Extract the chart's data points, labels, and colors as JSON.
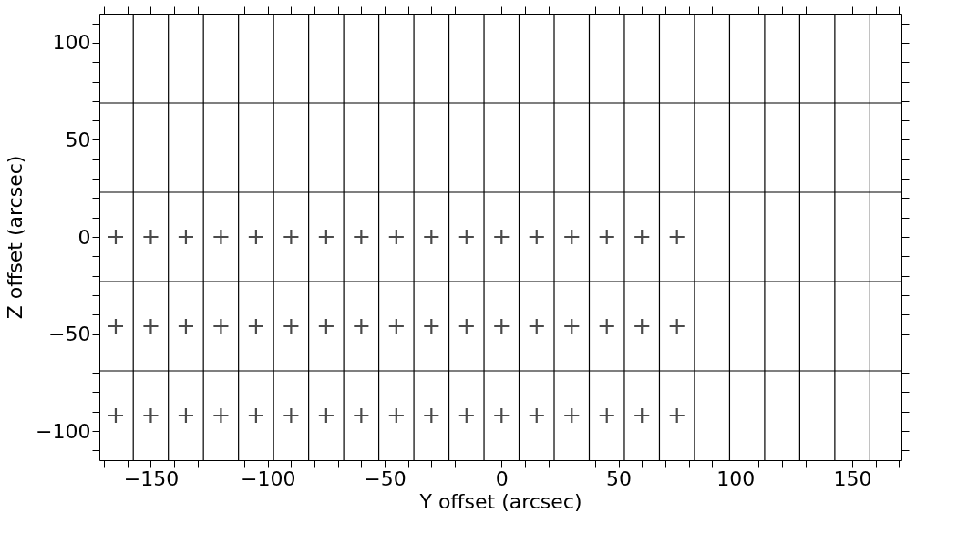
{
  "chart_data": {
    "type": "scatter",
    "xlabel": "Y offset (arcsec)",
    "ylabel": "Z offset (arcsec)",
    "xlim": [
      -172,
      171
    ],
    "ylim": [
      -115,
      115
    ],
    "xticks": [
      {
        "value": -170,
        "label": null
      },
      {
        "value": -160,
        "label": null
      },
      -150,
      {
        "value": -140,
        "label": null
      },
      {
        "value": -130,
        "label": null
      },
      {
        "value": -120,
        "label": null
      },
      {
        "value": -110,
        "label": null
      },
      -100,
      {
        "value": -90,
        "label": null
      },
      {
        "value": -80,
        "label": null
      },
      {
        "value": -70,
        "label": null
      },
      {
        "value": -60,
        "label": null
      },
      -50,
      {
        "value": -40,
        "label": null
      },
      {
        "value": -30,
        "label": null
      },
      {
        "value": -20,
        "label": null
      },
      {
        "value": -10,
        "label": null
      },
      0,
      {
        "value": 10,
        "label": null
      },
      {
        "value": 20,
        "label": null
      },
      {
        "value": 30,
        "label": null
      },
      {
        "value": 40,
        "label": null
      },
      50,
      {
        "value": 60,
        "label": null
      },
      {
        "value": 70,
        "label": null
      },
      {
        "value": 80,
        "label": null
      },
      {
        "value": 90,
        "label": null
      },
      100,
      {
        "value": 110,
        "label": null
      },
      {
        "value": 120,
        "label": null
      },
      {
        "value": 130,
        "label": null
      },
      {
        "value": 140,
        "label": null
      },
      150,
      {
        "value": 160,
        "label": null
      },
      {
        "value": 170,
        "label": null
      }
    ],
    "yticks": [
      {
        "value": -110,
        "label": null
      },
      -100,
      {
        "value": -90,
        "label": null
      },
      {
        "value": -80,
        "label": null
      },
      {
        "value": -70,
        "label": null
      },
      {
        "value": -60,
        "label": null
      },
      -50,
      {
        "value": -40,
        "label": null
      },
      {
        "value": -30,
        "label": null
      },
      {
        "value": -20,
        "label": null
      },
      {
        "value": -10,
        "label": null
      },
      0,
      {
        "value": 10,
        "label": null
      },
      {
        "value": 20,
        "label": null
      },
      {
        "value": 30,
        "label": null
      },
      {
        "value": 40,
        "label": null
      },
      50,
      {
        "value": 60,
        "label": null
      },
      {
        "value": 70,
        "label": null
      },
      {
        "value": 80,
        "label": null
      },
      {
        "value": 90,
        "label": null
      },
      100,
      {
        "value": 110,
        "label": null
      }
    ],
    "grid": false,
    "marker": "cross",
    "series": [
      {
        "color": "#000000",
        "x": [
          -165,
          -150,
          -135,
          -120,
          -105,
          -90,
          -75,
          -60,
          -45,
          -30,
          -15,
          0,
          15,
          30,
          45,
          60,
          75
        ],
        "values": [
          0,
          0,
          0,
          0,
          0,
          0,
          0,
          0,
          0,
          0,
          0,
          0,
          0,
          0,
          0,
          0,
          0
        ]
      },
      {
        "color": "#000000",
        "x": [
          -165,
          -150,
          -135,
          -120,
          -105,
          -90,
          -75,
          -60,
          -45,
          -30,
          -15,
          0,
          15,
          30,
          45,
          60,
          75
        ],
        "values": [
          -46,
          -46,
          -46,
          -46,
          -46,
          -46,
          -46,
          -46,
          -46,
          -46,
          -46,
          -46,
          -46,
          -46,
          -46,
          -46,
          -46
        ]
      },
      {
        "color": "#000000",
        "x": [
          -165,
          -150,
          -135,
          -120,
          -105,
          -90,
          -75,
          -60,
          -45,
          -30,
          -15,
          0,
          15,
          30,
          45,
          60,
          75
        ],
        "values": [
          -92,
          -92,
          -92,
          -92,
          -92,
          -92,
          -92,
          -92,
          -92,
          -92,
          -92,
          -92,
          -92,
          -92,
          -92,
          -92,
          -92
        ]
      }
    ],
    "ref_lines": [
      {
        "axis": "y",
        "value": 69,
        "color": "#000000"
      },
      {
        "axis": "y",
        "value": 23,
        "color": "#000000"
      },
      {
        "axis": "y",
        "value": -23,
        "color": "#000000"
      },
      {
        "axis": "y",
        "value": -69,
        "color": "#000000"
      },
      {
        "axis": "x",
        "value": -157.5,
        "color": "#000000"
      },
      {
        "axis": "x",
        "value": -142.5,
        "color": "#000000"
      },
      {
        "axis": "x",
        "value": -127.5,
        "color": "#000000"
      },
      {
        "axis": "x",
        "value": -112.5,
        "color": "#000000"
      },
      {
        "axis": "x",
        "value": -97.5,
        "color": "#000000"
      },
      {
        "axis": "x",
        "value": -82.5,
        "color": "#000000"
      },
      {
        "axis": "x",
        "value": -67.5,
        "color": "#000000"
      },
      {
        "axis": "x",
        "value": -52.5,
        "color": "#000000"
      },
      {
        "axis": "x",
        "value": -37.5,
        "color": "#000000"
      },
      {
        "axis": "x",
        "value": -22.5,
        "color": "#000000"
      },
      {
        "axis": "x",
        "value": -7.5,
        "color": "#000000"
      },
      {
        "axis": "x",
        "value": 7.5,
        "color": "#000000"
      },
      {
        "axis": "x",
        "value": 22.5,
        "color": "#000000"
      },
      {
        "axis": "x",
        "value": 37.5,
        "color": "#000000"
      },
      {
        "axis": "x",
        "value": 52.5,
        "color": "#000000"
      },
      {
        "axis": "x",
        "value": 67.5,
        "color": "#000000"
      },
      {
        "axis": "x",
        "value": 82.5,
        "color": "#000000"
      },
      {
        "axis": "x",
        "value": 97.5,
        "color": "#000000"
      },
      {
        "axis": "x",
        "value": 112.5,
        "color": "#000000"
      },
      {
        "axis": "x",
        "value": 127.5,
        "color": "#000000"
      },
      {
        "axis": "x",
        "value": 142.5,
        "color": "#000000"
      },
      {
        "axis": "x",
        "value": 157.5,
        "color": "#000000"
      }
    ]
  }
}
